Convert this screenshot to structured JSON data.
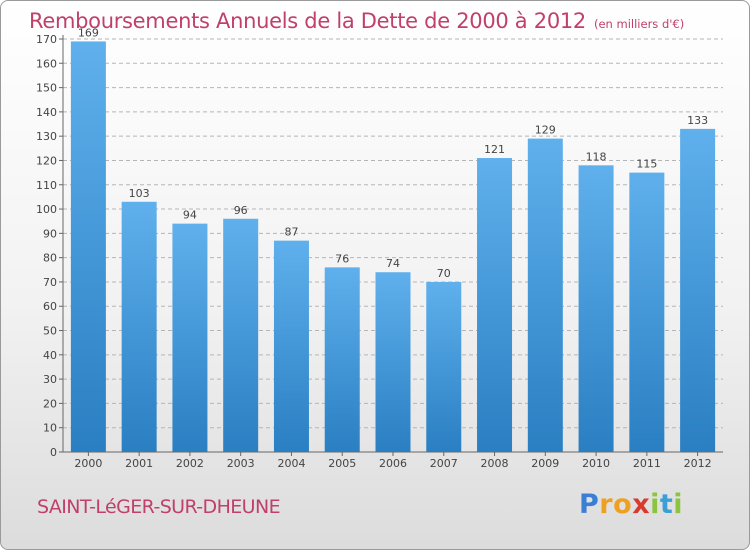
{
  "title": "Remboursements Annuels de la Dette de 2000 à 2012",
  "subtitle": "(en milliers d'€)",
  "commune": "SAINT-LéGER-SUR-DHEUNE",
  "logo": {
    "letters": [
      "P",
      "r",
      "o",
      "x",
      "i",
      "t",
      "i"
    ]
  },
  "colors": {
    "bar_light": "#5fb0ec",
    "bar_dark": "#2a7fc2",
    "title": "#c0406a",
    "grid": "#b5b5b5"
  },
  "chart_data": {
    "type": "bar",
    "categories": [
      "2000",
      "2001",
      "2002",
      "2003",
      "2004",
      "2005",
      "2006",
      "2007",
      "2008",
      "2009",
      "2010",
      "2011",
      "2012"
    ],
    "values": [
      169,
      103,
      94,
      96,
      87,
      76,
      74,
      70,
      121,
      129,
      118,
      115,
      133
    ],
    "y_ticks": [
      0,
      10,
      20,
      30,
      40,
      50,
      60,
      70,
      80,
      90,
      100,
      110,
      120,
      130,
      140,
      150,
      160,
      170
    ],
    "ylim": [
      0,
      170
    ],
    "grid": true,
    "grid_style": "dashed horizontal",
    "data_labels": true
  }
}
